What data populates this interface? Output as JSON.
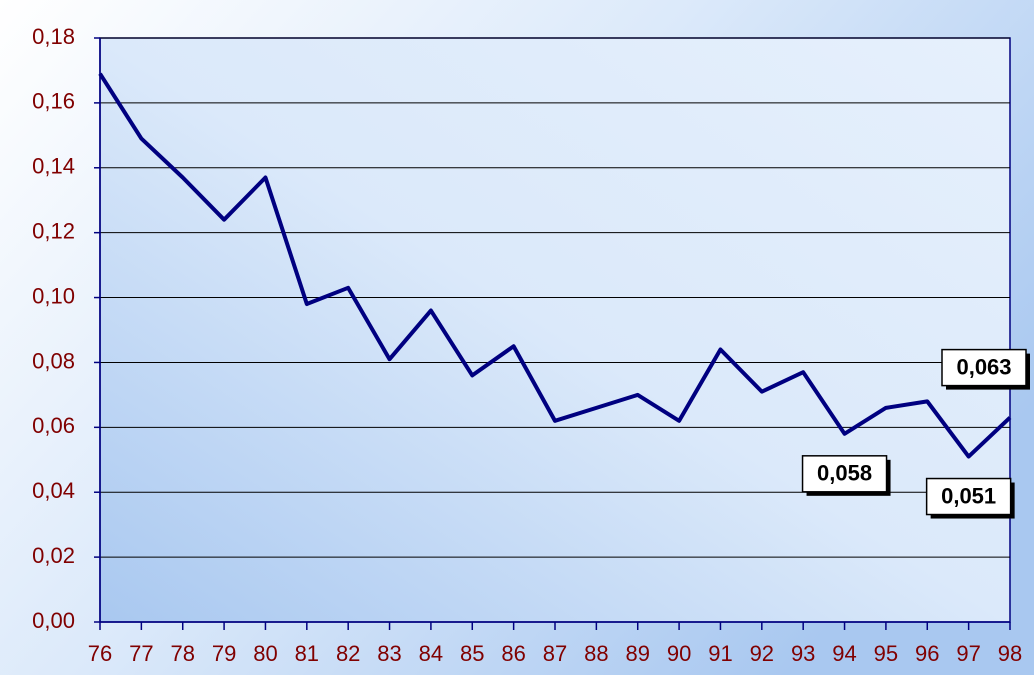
{
  "chart_data": {
    "type": "line",
    "categories": [
      "76",
      "77",
      "78",
      "79",
      "80",
      "81",
      "82",
      "83",
      "84",
      "85",
      "86",
      "87",
      "88",
      "89",
      "90",
      "91",
      "92",
      "93",
      "94",
      "95",
      "96",
      "97",
      "98"
    ],
    "series": [
      {
        "color": "#000080",
        "values": [
          0.169,
          0.149,
          0.137,
          0.124,
          0.137,
          0.098,
          0.103,
          0.081,
          0.096,
          0.076,
          0.085,
          0.062,
          0.066,
          0.07,
          0.062,
          0.084,
          0.071,
          0.077,
          0.058,
          0.066,
          0.068,
          0.051,
          0.063
        ],
        "value_labels": [
          null,
          null,
          null,
          null,
          null,
          null,
          null,
          null,
          null,
          null,
          null,
          null,
          null,
          null,
          null,
          null,
          null,
          null,
          "0,058",
          null,
          null,
          "0,051",
          "0,063"
        ]
      }
    ],
    "ylim": [
      0,
      0.18
    ],
    "yticks": [
      {
        "value": 0,
        "label": "0,00"
      },
      {
        "value": 0.02,
        "label": "0,02"
      },
      {
        "value": 0.04,
        "label": "0,04"
      },
      {
        "value": 0.06,
        "label": "0,06"
      },
      {
        "value": 0.08,
        "label": "0,08"
      },
      {
        "value": 0.1,
        "label": "0,10"
      },
      {
        "value": 0.12,
        "label": "0,12"
      },
      {
        "value": 0.14,
        "label": "0,14"
      },
      {
        "value": 0.16,
        "label": "0,16"
      },
      {
        "value": 0.18,
        "label": "0,18"
      }
    ],
    "grid": true
  }
}
